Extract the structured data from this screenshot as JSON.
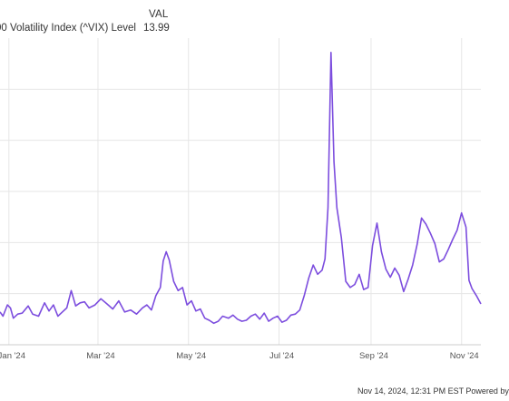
{
  "legend": {
    "column_header": "VAL",
    "series_label": "00 Volatility Index (^VIX) Level",
    "series_value": "13.99"
  },
  "footer": {
    "text": "Nov 14, 2024, 12:31 PM EST Powered by"
  },
  "colors": {
    "line": "#7c4dde",
    "grid": "#e6e6e6",
    "axis_text": "#555555"
  },
  "chart_data": {
    "type": "line",
    "title": "",
    "xlabel": "",
    "ylabel": "",
    "grid": true,
    "x_tick_labels": [
      "Jan '24",
      "Mar '24",
      "May '24",
      "Jul '24",
      "Sep '24",
      "Nov '24"
    ],
    "x_tick_dates": [
      "2024-01-01",
      "2024-03-01",
      "2024-05-01",
      "2024-07-01",
      "2024-09-01",
      "2024-11-01"
    ],
    "xlim": [
      "2023-12-26",
      "2024-11-14"
    ],
    "ylim": [
      10,
      40
    ],
    "y_grid_values": [
      15,
      20,
      25,
      30,
      35
    ],
    "series": [
      {
        "name": "",
        "x": [
          "2023-12-26",
          "2023-12-28",
          "2023-12-31",
          "2024-01-02",
          "2024-01-04",
          "2024-01-07",
          "2024-01-10",
          "2024-01-14",
          "2024-01-17",
          "2024-01-21",
          "2024-01-25",
          "2024-01-28",
          "2024-01-31",
          "2024-02-03",
          "2024-02-06",
          "2024-02-09",
          "2024-02-12",
          "2024-02-15",
          "2024-02-18",
          "2024-02-21",
          "2024-02-24",
          "2024-02-28",
          "2024-03-03",
          "2024-03-07",
          "2024-03-11",
          "2024-03-15",
          "2024-03-19",
          "2024-03-23",
          "2024-03-27",
          "2024-03-31",
          "2024-04-03",
          "2024-04-06",
          "2024-04-09",
          "2024-04-12",
          "2024-04-14",
          "2024-04-16",
          "2024-04-18",
          "2024-04-21",
          "2024-04-24",
          "2024-04-27",
          "2024-04-30",
          "2024-05-03",
          "2024-05-06",
          "2024-05-09",
          "2024-05-12",
          "2024-05-15",
          "2024-05-18",
          "2024-05-21",
          "2024-05-24",
          "2024-05-28",
          "2024-05-31",
          "2024-06-03",
          "2024-06-06",
          "2024-06-09",
          "2024-06-12",
          "2024-06-15",
          "2024-06-18",
          "2024-06-21",
          "2024-06-24",
          "2024-06-27",
          "2024-06-30",
          "2024-07-03",
          "2024-07-06",
          "2024-07-09",
          "2024-07-12",
          "2024-07-15",
          "2024-07-18",
          "2024-07-21",
          "2024-07-24",
          "2024-07-27",
          "2024-07-30",
          "2024-08-01",
          "2024-08-03",
          "2024-08-05",
          "2024-08-07",
          "2024-08-09",
          "2024-08-12",
          "2024-08-15",
          "2024-08-18",
          "2024-08-21",
          "2024-08-24",
          "2024-08-27",
          "2024-08-30",
          "2024-09-02",
          "2024-09-05",
          "2024-09-08",
          "2024-09-11",
          "2024-09-14",
          "2024-09-17",
          "2024-09-20",
          "2024-09-23",
          "2024-09-26",
          "2024-09-29",
          "2024-10-02",
          "2024-10-05",
          "2024-10-08",
          "2024-10-11",
          "2024-10-14",
          "2024-10-17",
          "2024-10-20",
          "2024-10-23",
          "2024-10-26",
          "2024-10-29",
          "2024-11-01",
          "2024-11-04",
          "2024-11-06",
          "2024-11-08",
          "2024-11-11",
          "2024-11-14"
        ],
        "y": [
          13.2,
          12.8,
          13.9,
          13.6,
          12.6,
          13.0,
          13.1,
          13.8,
          13.0,
          12.8,
          14.1,
          13.3,
          13.9,
          12.8,
          13.2,
          13.6,
          15.3,
          13.8,
          14.1,
          14.2,
          13.6,
          13.9,
          14.5,
          14.0,
          13.5,
          14.3,
          13.2,
          13.4,
          13.0,
          13.6,
          13.9,
          13.4,
          14.8,
          15.6,
          18.2,
          19.1,
          18.3,
          16.2,
          15.3,
          15.6,
          13.9,
          14.3,
          13.3,
          13.5,
          12.6,
          12.4,
          12.1,
          12.3,
          12.8,
          12.6,
          12.9,
          12.5,
          12.3,
          12.4,
          12.8,
          13.0,
          12.5,
          13.1,
          12.3,
          12.6,
          12.8,
          12.2,
          12.4,
          12.9,
          13.0,
          13.4,
          14.8,
          16.5,
          17.8,
          16.9,
          17.3,
          18.4,
          23.4,
          38.6,
          27.9,
          23.4,
          20.5,
          16.2,
          15.6,
          15.9,
          16.9,
          15.4,
          15.6,
          19.7,
          21.9,
          19.1,
          17.4,
          16.6,
          17.5,
          16.8,
          15.2,
          16.4,
          17.8,
          19.8,
          22.4,
          21.8,
          20.9,
          19.9,
          18.1,
          18.4,
          19.3,
          20.3,
          21.2,
          22.9,
          21.5,
          16.3,
          15.5,
          14.8,
          13.99
        ]
      }
    ]
  }
}
